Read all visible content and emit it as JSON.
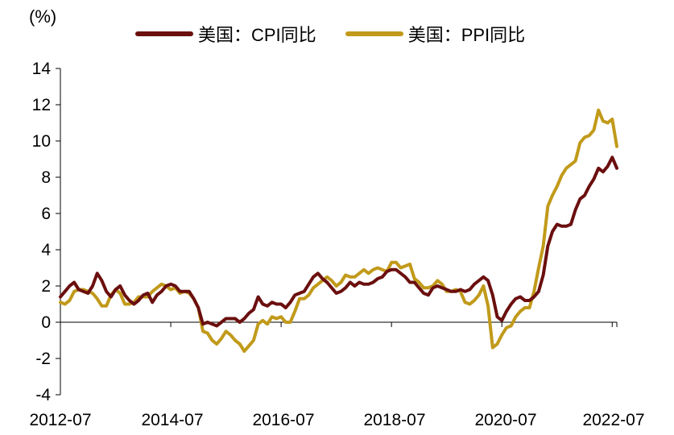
{
  "chart_data": {
    "type": "line",
    "unit_label": "(%)",
    "x_tick_labels": [
      "2012-07",
      "2014-07",
      "2016-07",
      "2018-07",
      "2020-07",
      "2022-07"
    ],
    "ylim": [
      -4,
      14
    ],
    "y_ticks": [
      -4,
      -2,
      0,
      2,
      4,
      6,
      8,
      10,
      12,
      14
    ],
    "legend_placement": "top",
    "grid": false,
    "x_start": "2012-07",
    "series": [
      {
        "name": "美国：CPI同比",
        "color": "#6B0F0F",
        "values": [
          1.4,
          1.7,
          2.0,
          2.2,
          1.8,
          1.7,
          1.6,
          2.0,
          2.7,
          2.3,
          1.7,
          1.4,
          1.8,
          2.0,
          1.5,
          1.2,
          1.0,
          1.2,
          1.5,
          1.6,
          1.1,
          1.5,
          1.7,
          2.0,
          2.1,
          2.0,
          1.7,
          1.7,
          1.7,
          1.3,
          0.8,
          -0.1,
          0.0,
          -0.1,
          -0.2,
          0.0,
          0.2,
          0.2,
          0.2,
          0.0,
          0.2,
          0.5,
          0.7,
          1.4,
          1.0,
          0.9,
          1.1,
          1.0,
          1.0,
          0.8,
          1.1,
          1.5,
          1.6,
          1.7,
          2.1,
          2.5,
          2.7,
          2.4,
          2.2,
          1.9,
          1.6,
          1.7,
          1.9,
          2.2,
          2.0,
          2.2,
          2.1,
          2.1,
          2.2,
          2.4,
          2.5,
          2.8,
          2.9,
          2.9,
          2.7,
          2.5,
          2.2,
          2.2,
          1.9,
          1.6,
          1.5,
          1.9,
          2.0,
          1.9,
          1.8,
          1.7,
          1.7,
          1.8,
          1.7,
          1.8,
          2.1,
          2.3,
          2.5,
          2.3,
          1.5,
          0.3,
          0.1,
          0.6,
          1.0,
          1.3,
          1.4,
          1.2,
          1.2,
          1.4,
          1.7,
          2.6,
          4.2,
          5.0,
          5.4,
          5.3,
          5.3,
          5.4,
          6.2,
          6.8,
          7.0,
          7.5,
          7.9,
          8.5,
          8.3,
          8.6,
          9.1,
          8.5
        ]
      },
      {
        "name": "美国：PPI同比",
        "color": "#C19A1A",
        "values": [
          1.1,
          1.0,
          1.2,
          1.7,
          1.8,
          1.8,
          1.7,
          1.6,
          1.3,
          0.9,
          0.9,
          1.5,
          1.8,
          1.6,
          1.0,
          1.0,
          1.1,
          1.4,
          1.4,
          1.4,
          1.7,
          1.9,
          2.1,
          2.0,
          1.8,
          1.9,
          1.6,
          1.7,
          1.6,
          1.3,
          0.8,
          -0.5,
          -0.6,
          -1.0,
          -1.2,
          -0.9,
          -0.5,
          -0.7,
          -1.0,
          -1.2,
          -1.6,
          -1.3,
          -1.0,
          -0.1,
          0.1,
          -0.1,
          0.3,
          0.2,
          0.3,
          0.0,
          0.0,
          0.6,
          1.3,
          1.3,
          1.5,
          1.9,
          2.1,
          2.3,
          2.5,
          2.3,
          2.0,
          2.2,
          2.6,
          2.5,
          2.5,
          2.7,
          2.9,
          2.7,
          2.9,
          3.0,
          2.9,
          2.8,
          3.3,
          3.3,
          3.0,
          3.1,
          3.2,
          2.4,
          2.2,
          1.9,
          1.9,
          2.0,
          2.3,
          2.1,
          1.7,
          1.7,
          1.8,
          1.7,
          1.1,
          1.0,
          1.2,
          1.5,
          2.0,
          0.9,
          -1.4,
          -1.2,
          -0.7,
          -0.3,
          -0.2,
          0.3,
          0.6,
          0.8,
          0.8,
          1.7,
          3.0,
          4.2,
          6.4,
          7.0,
          7.5,
          8.1,
          8.5,
          8.7,
          8.9,
          9.9,
          10.2,
          10.3,
          10.6,
          11.7,
          11.1,
          11.0,
          11.2,
          9.7
        ]
      }
    ]
  }
}
